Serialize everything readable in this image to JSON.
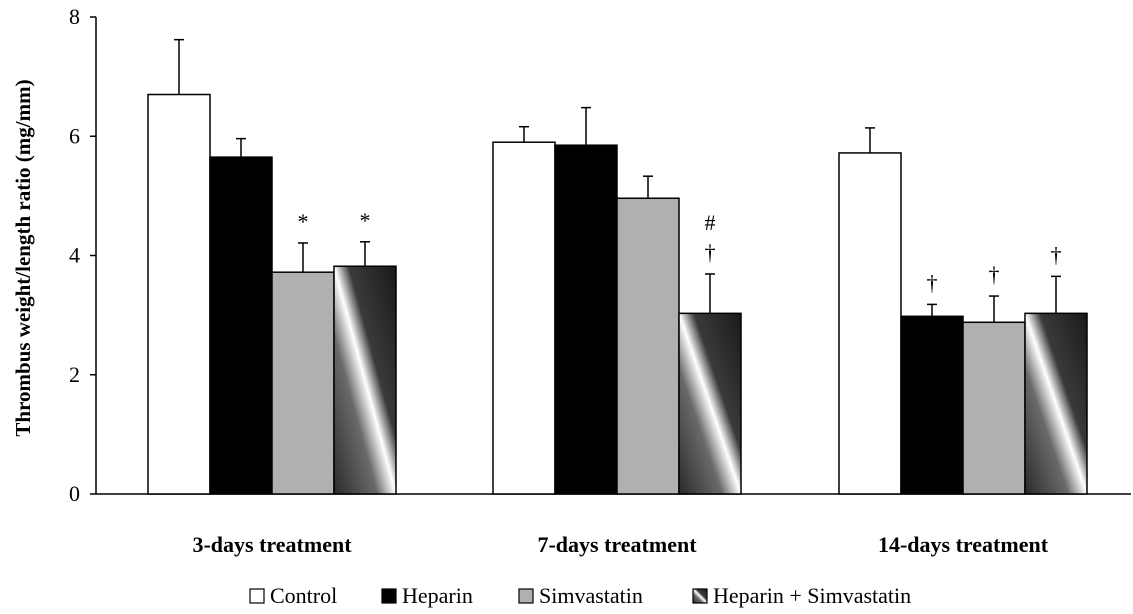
{
  "chart_data": {
    "type": "bar",
    "title": "",
    "xlabel": "",
    "ylabel": "Thrombus  weight/length ratio (mg/mm)",
    "ylim": [
      0,
      8
    ],
    "yticks": [
      "0",
      "2",
      "4",
      "6",
      "8"
    ],
    "grid": false,
    "legend_position": "bottom",
    "categories": [
      "3-days treatment",
      "7-days treatment",
      "14-days treatment"
    ],
    "series": [
      {
        "name": "Control",
        "fill": "#ffffff",
        "pattern": "none",
        "values": [
          6.7,
          5.9,
          5.72
        ],
        "error": [
          0.92,
          0.26,
          0.42
        ],
        "annotations": [
          "",
          "",
          ""
        ]
      },
      {
        "name": "Heparin",
        "fill": "#000000",
        "pattern": "none",
        "values": [
          5.65,
          5.85,
          2.98
        ],
        "error": [
          0.31,
          0.63,
          0.2
        ],
        "annotations": [
          "",
          "",
          "†"
        ]
      },
      {
        "name": "Simvastatin",
        "fill": "#b0b0b0",
        "pattern": "none",
        "values": [
          3.72,
          4.96,
          2.88
        ],
        "error": [
          0.49,
          0.37,
          0.44
        ],
        "annotations": [
          "*",
          "",
          "†"
        ]
      },
      {
        "name": "Heparin + Simvastatin",
        "fill": "#4a4a4a",
        "pattern": "diagonal-gradient",
        "values": [
          3.82,
          3.03,
          3.03
        ],
        "error": [
          0.41,
          0.66,
          0.62
        ],
        "annotations": [
          "*",
          "#\n†",
          "†"
        ]
      }
    ],
    "colors": {
      "axis": "#000000",
      "bar_stroke": "#000000"
    }
  }
}
